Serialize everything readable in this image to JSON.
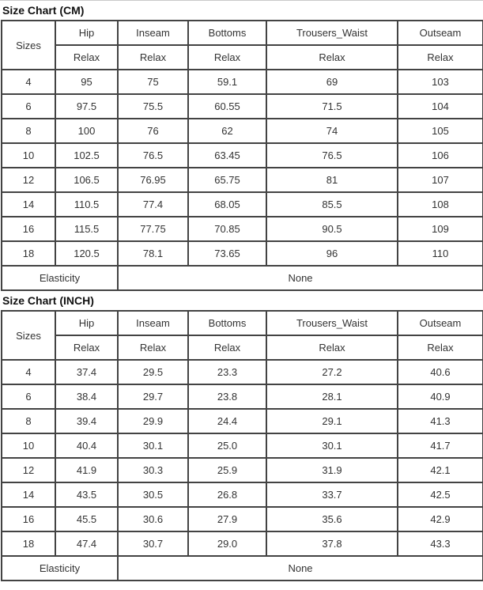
{
  "charts": [
    {
      "id": "cm",
      "title": "Size Chart (CM)",
      "sizes_header": "Sizes",
      "columns": [
        "Hip",
        "Inseam",
        "Bottoms",
        "Trousers_Waist",
        "Outseam"
      ],
      "sub_header": "Relax",
      "rows": [
        {
          "size": "4",
          "values": [
            "95",
            "75",
            "59.1",
            "69",
            "103"
          ]
        },
        {
          "size": "6",
          "values": [
            "97.5",
            "75.5",
            "60.55",
            "71.5",
            "104"
          ]
        },
        {
          "size": "8",
          "values": [
            "100",
            "76",
            "62",
            "74",
            "105"
          ]
        },
        {
          "size": "10",
          "values": [
            "102.5",
            "76.5",
            "63.45",
            "76.5",
            "106"
          ]
        },
        {
          "size": "12",
          "values": [
            "106.5",
            "76.95",
            "65.75",
            "81",
            "107"
          ]
        },
        {
          "size": "14",
          "values": [
            "110.5",
            "77.4",
            "68.05",
            "85.5",
            "108"
          ]
        },
        {
          "size": "16",
          "values": [
            "115.5",
            "77.75",
            "70.85",
            "90.5",
            "109"
          ]
        },
        {
          "size": "18",
          "values": [
            "120.5",
            "78.1",
            "73.65",
            "96",
            "110"
          ]
        }
      ],
      "elasticity_label": "Elasticity",
      "elasticity_value": "None"
    },
    {
      "id": "inch",
      "title": "Size Chart (INCH)",
      "sizes_header": "Sizes",
      "columns": [
        "Hip",
        "Inseam",
        "Bottoms",
        "Trousers_Waist",
        "Outseam"
      ],
      "sub_header": "Relax",
      "rows": [
        {
          "size": "4",
          "values": [
            "37.4",
            "29.5",
            "23.3",
            "27.2",
            "40.6"
          ]
        },
        {
          "size": "6",
          "values": [
            "38.4",
            "29.7",
            "23.8",
            "28.1",
            "40.9"
          ]
        },
        {
          "size": "8",
          "values": [
            "39.4",
            "29.9",
            "24.4",
            "29.1",
            "41.3"
          ]
        },
        {
          "size": "10",
          "values": [
            "40.4",
            "30.1",
            "25.0",
            "30.1",
            "41.7"
          ]
        },
        {
          "size": "12",
          "values": [
            "41.9",
            "30.3",
            "25.9",
            "31.9",
            "42.1"
          ]
        },
        {
          "size": "14",
          "values": [
            "43.5",
            "30.5",
            "26.8",
            "33.7",
            "42.5"
          ]
        },
        {
          "size": "16",
          "values": [
            "45.5",
            "30.6",
            "27.9",
            "35.6",
            "42.9"
          ]
        },
        {
          "size": "18",
          "values": [
            "47.4",
            "30.7",
            "29.0",
            "37.8",
            "43.3"
          ]
        }
      ],
      "elasticity_label": "Elasticity",
      "elasticity_value": "None"
    }
  ],
  "colors": {
    "border": "#434343",
    "text": "#333333",
    "title": "#111111",
    "top_rule": "#c9c9c9"
  }
}
